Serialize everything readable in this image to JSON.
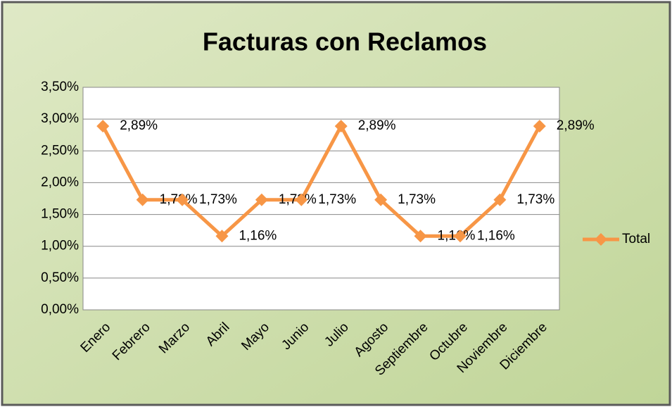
{
  "chart_data": {
    "type": "line",
    "title": "Facturas con Reclamos",
    "categories": [
      "Enero",
      "Febrero",
      "Marzo",
      "Abril",
      "Mayo",
      "Junio",
      "Julio",
      "Agosto",
      "Septiembre",
      "Octubre",
      "Noviembre",
      "Diciembre"
    ],
    "series": [
      {
        "name": "Total",
        "color": "#f79646",
        "values": [
          2.89,
          1.73,
          1.73,
          1.16,
          1.73,
          1.73,
          2.89,
          1.73,
          1.16,
          1.16,
          1.73,
          2.89
        ],
        "value_labels": [
          "2,89%",
          "1,73%",
          "1,73%",
          "1,16%",
          "1,73%",
          "1,73%",
          "2,89%",
          "1,73%",
          "1,16%",
          "1,16%",
          "1,73%",
          "2,89%"
        ]
      }
    ],
    "ylim": [
      0,
      3.5
    ],
    "yticks": [
      {
        "value": 0,
        "label": "0,00%"
      },
      {
        "value": 0.5,
        "label": "0,50%"
      },
      {
        "value": 1,
        "label": "1,00%"
      },
      {
        "value": 1.5,
        "label": "1,50%"
      },
      {
        "value": 2,
        "label": "2,00%"
      },
      {
        "value": 2.5,
        "label": "2,50%"
      },
      {
        "value": 3,
        "label": "3,00%"
      },
      {
        "value": 3.5,
        "label": "3,50%"
      }
    ],
    "grid": true,
    "legend": "right"
  }
}
